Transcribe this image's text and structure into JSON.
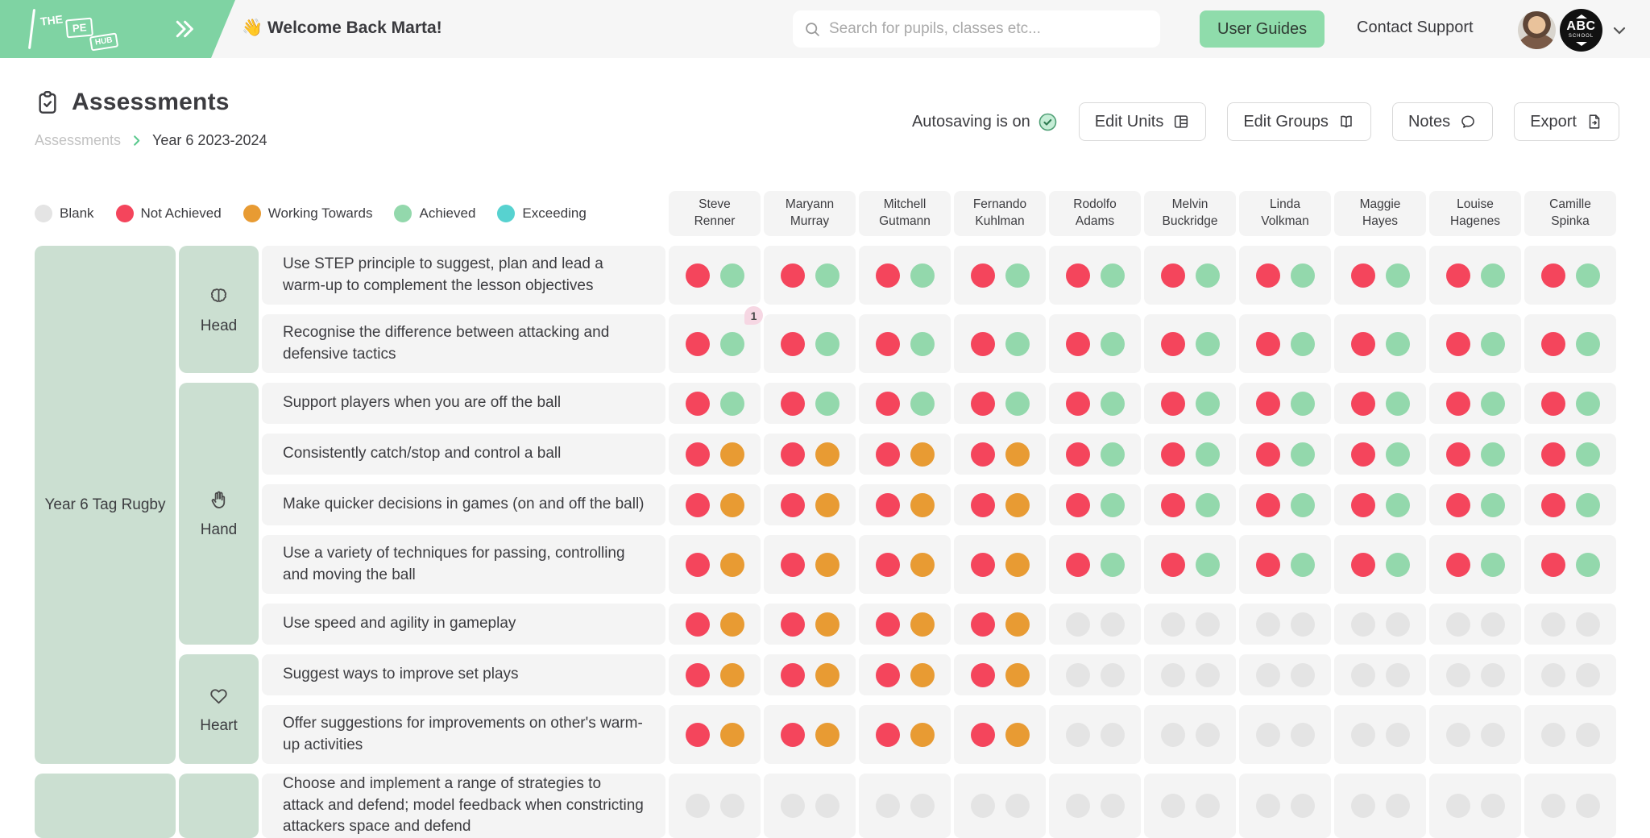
{
  "header": {
    "logo": {
      "the": "THE",
      "pe": "PE",
      "hub": "HUB"
    },
    "greeting": "👋 Welcome Back Marta!",
    "search_placeholder": "Search for pupils, classes etc...",
    "user_guides_label": "User Guides",
    "contact_support_label": "Contact Support",
    "school_badge": {
      "abc": "ABC",
      "school": "SCHOOL"
    }
  },
  "page": {
    "title": "Assessments",
    "breadcrumb": [
      "Assessments",
      "Year 6 2023-2024"
    ],
    "autosave_label": "Autosaving is on",
    "buttons": [
      {
        "label": "Edit Units",
        "icon": "grid-icon"
      },
      {
        "label": "Edit Groups",
        "icon": "book-icon"
      },
      {
        "label": "Notes",
        "icon": "chat-icon"
      },
      {
        "label": "Export",
        "icon": "file-icon"
      }
    ]
  },
  "legend": [
    {
      "label": "Blank",
      "key": "B"
    },
    {
      "label": "Not Achieved",
      "key": "N"
    },
    {
      "label": "Working Towards",
      "key": "W"
    },
    {
      "label": "Achieved",
      "key": "A"
    },
    {
      "label": "Exceeding",
      "key": "X"
    }
  ],
  "colors": {
    "B": "#E4E4E4",
    "N": "#F4455C",
    "W": "#E89B33",
    "A": "#93D8AC",
    "X": "#57D2D0"
  },
  "students": [
    {
      "lines": [
        "Steve",
        "Renner"
      ]
    },
    {
      "lines": [
        "Maryann",
        "Murray"
      ]
    },
    {
      "lines": [
        "Mitchell",
        "Gutmann"
      ]
    },
    {
      "lines": [
        "Fernando",
        "Kuhlman"
      ]
    },
    {
      "lines": [
        "Rodolfo",
        "Adams"
      ]
    },
    {
      "lines": [
        "Melvin",
        "Buckridge"
      ]
    },
    {
      "lines": [
        "Linda",
        "Volkman"
      ]
    },
    {
      "lines": [
        "Maggie",
        "Hayes"
      ]
    },
    {
      "lines": [
        "Louise",
        "Hagenes"
      ]
    },
    {
      "lines": [
        "Camille",
        "Spinka"
      ]
    }
  ],
  "units": [
    {
      "name": "Year 6 Tag Rugby",
      "rows": [
        0,
        8
      ]
    },
    {
      "name": "",
      "rows": [
        9,
        9
      ]
    }
  ],
  "sections": [
    {
      "label": "Head",
      "icon": "brain-icon",
      "rows": [
        0,
        1
      ]
    },
    {
      "label": "Hand",
      "icon": "hand-icon",
      "rows": [
        2,
        6
      ]
    },
    {
      "label": "Heart",
      "icon": "heart-icon",
      "rows": [
        7,
        8
      ]
    },
    {
      "label": "",
      "icon": "",
      "rows": [
        9,
        9
      ]
    }
  ],
  "rows": [
    {
      "text": "Use STEP principle to suggest, plan and lead a warm-up to complement the lesson objectives",
      "marks": [
        "NA",
        "NA",
        "NA",
        "NA",
        "NA",
        "NA",
        "NA",
        "NA",
        "NA",
        "NA"
      ],
      "badge": null
    },
    {
      "text": "Recognise the difference between attacking and defensive tactics",
      "marks": [
        "NA",
        "NA",
        "NA",
        "NA",
        "NA",
        "NA",
        "NA",
        "NA",
        "NA",
        "NA"
      ],
      "badge": {
        "student": 0,
        "count": "1"
      }
    },
    {
      "text": "Support players when you are off the ball",
      "marks": [
        "NA",
        "NA",
        "NA",
        "NA",
        "NA",
        "NA",
        "NA",
        "NA",
        "NA",
        "NA"
      ],
      "badge": null
    },
    {
      "text": "Consistently catch/stop and control a ball",
      "marks": [
        "NW",
        "NW",
        "NW",
        "NW",
        "NA",
        "NA",
        "NA",
        "NA",
        "NA",
        "NA"
      ],
      "badge": null
    },
    {
      "text": "Make quicker decisions in games (on and off the ball)",
      "marks": [
        "NW",
        "NW",
        "NW",
        "NW",
        "NA",
        "NA",
        "NA",
        "NA",
        "NA",
        "NA"
      ],
      "badge": null
    },
    {
      "text": "Use a variety of techniques for passing, controlling and moving the ball",
      "marks": [
        "NW",
        "NW",
        "NW",
        "NW",
        "NA",
        "NA",
        "NA",
        "NA",
        "NA",
        "NA"
      ],
      "badge": null
    },
    {
      "text": "Use speed and agility in gameplay",
      "marks": [
        "NW",
        "NW",
        "NW",
        "NW",
        "BB",
        "BB",
        "BB",
        "BB",
        "BB",
        "BB"
      ],
      "badge": null
    },
    {
      "text": "Suggest ways to improve set plays",
      "marks": [
        "NW",
        "NW",
        "NW",
        "NW",
        "BB",
        "BB",
        "BB",
        "BB",
        "BB",
        "BB"
      ],
      "badge": null
    },
    {
      "text": "Offer suggestions for improvements on other's warm-up activities",
      "marks": [
        "NW",
        "NW",
        "NW",
        "NW",
        "BB",
        "BB",
        "BB",
        "BB",
        "BB",
        "BB"
      ],
      "badge": null
    },
    {
      "text": "Choose and implement a range of strategies to attack and defend; model feedback when constricting attackers space and defend",
      "marks": [
        "BB",
        "BB",
        "BB",
        "BB",
        "BB",
        "BB",
        "BB",
        "BB",
        "BB",
        "BB"
      ],
      "badge": null
    }
  ]
}
